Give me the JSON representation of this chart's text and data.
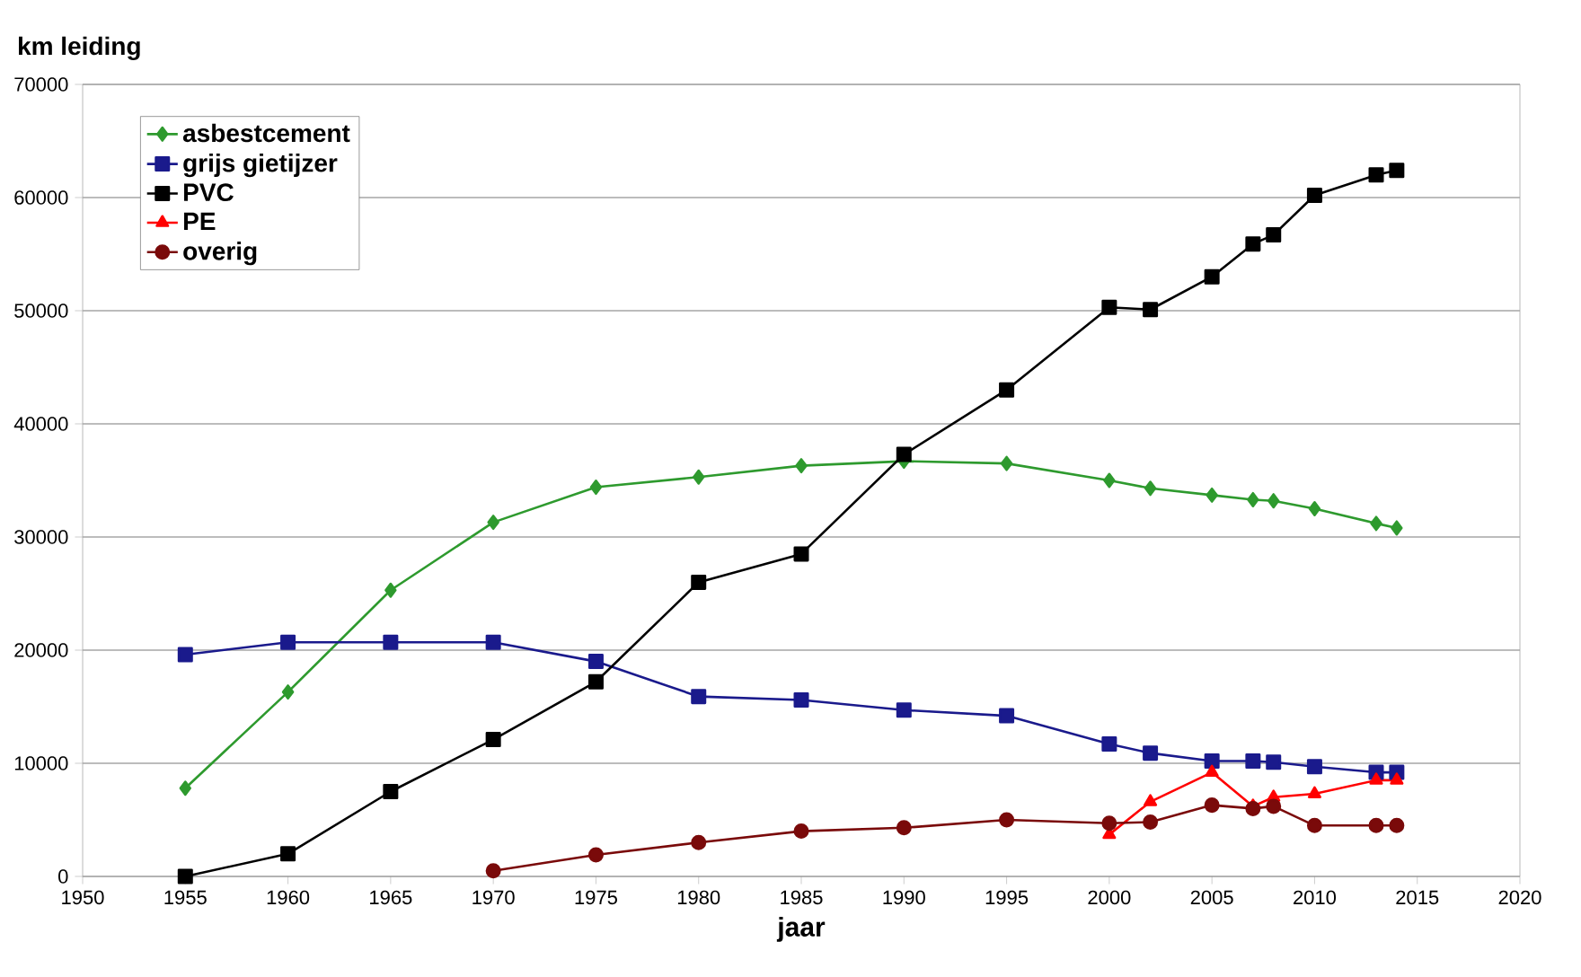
{
  "chart_data": {
    "type": "line",
    "xlabel": "jaar",
    "ylabel": "km leiding",
    "xlim": [
      1950,
      2020
    ],
    "xticks": [
      1950,
      1955,
      1960,
      1965,
      1970,
      1975,
      1980,
      1985,
      1990,
      1995,
      2000,
      2005,
      2010,
      2015,
      2020
    ],
    "ylim": [
      0,
      70000
    ],
    "yticks": [
      0,
      10000,
      20000,
      30000,
      40000,
      50000,
      60000,
      70000
    ],
    "grid": "y",
    "legend": "top left",
    "series": [
      {
        "name": "asbestcement",
        "color": "#2e9a2e",
        "marker": "diamond",
        "x": [
          1955,
          1960,
          1965,
          1970,
          1975,
          1980,
          1985,
          1990,
          1995,
          2000,
          2002,
          2005,
          2007,
          2008,
          2010,
          2013,
          2014
        ],
        "values": [
          7800,
          16300,
          25300,
          31300,
          34400,
          35300,
          36300,
          36700,
          36500,
          35000,
          34300,
          33700,
          33300,
          33200,
          32500,
          31200,
          30800
        ]
      },
      {
        "name": "grijs gietijzer",
        "color": "#1a1a8c",
        "marker": "square",
        "x": [
          1955,
          1960,
          1965,
          1970,
          1975,
          1980,
          1985,
          1990,
          1995,
          2000,
          2002,
          2005,
          2007,
          2008,
          2010,
          2013,
          2014
        ],
        "values": [
          19600,
          20700,
          20700,
          20700,
          19000,
          15900,
          15600,
          14700,
          14200,
          11700,
          10900,
          10200,
          10200,
          10100,
          9700,
          9200,
          9200
        ]
      },
      {
        "name": "PVC",
        "color": "#000000",
        "marker": "square",
        "x": [
          1955,
          1960,
          1965,
          1970,
          1975,
          1980,
          1985,
          1990,
          1995,
          2000,
          2002,
          2005,
          2007,
          2008,
          2010,
          2013,
          2014
        ],
        "values": [
          0,
          2000,
          7500,
          12100,
          17200,
          26000,
          28500,
          37300,
          43000,
          50300,
          50100,
          53000,
          55900,
          56700,
          60200,
          62000,
          62400
        ]
      },
      {
        "name": "PE",
        "color": "#ff0000",
        "marker": "triangle",
        "x": [
          2000,
          2002,
          2005,
          2007,
          2008,
          2010,
          2013,
          2014
        ],
        "values": [
          3700,
          6600,
          9200,
          6200,
          7000,
          7300,
          8500,
          8500
        ]
      },
      {
        "name": "overig",
        "color": "#7a0a0a",
        "marker": "circle",
        "x": [
          1970,
          1975,
          1980,
          1985,
          1990,
          1995,
          2000,
          2002,
          2005,
          2007,
          2008,
          2010,
          2013,
          2014
        ],
        "values": [
          500,
          1900,
          3000,
          4000,
          4300,
          5000,
          4700,
          4800,
          6300,
          6000,
          6200,
          4500,
          4500,
          4500
        ]
      }
    ]
  }
}
